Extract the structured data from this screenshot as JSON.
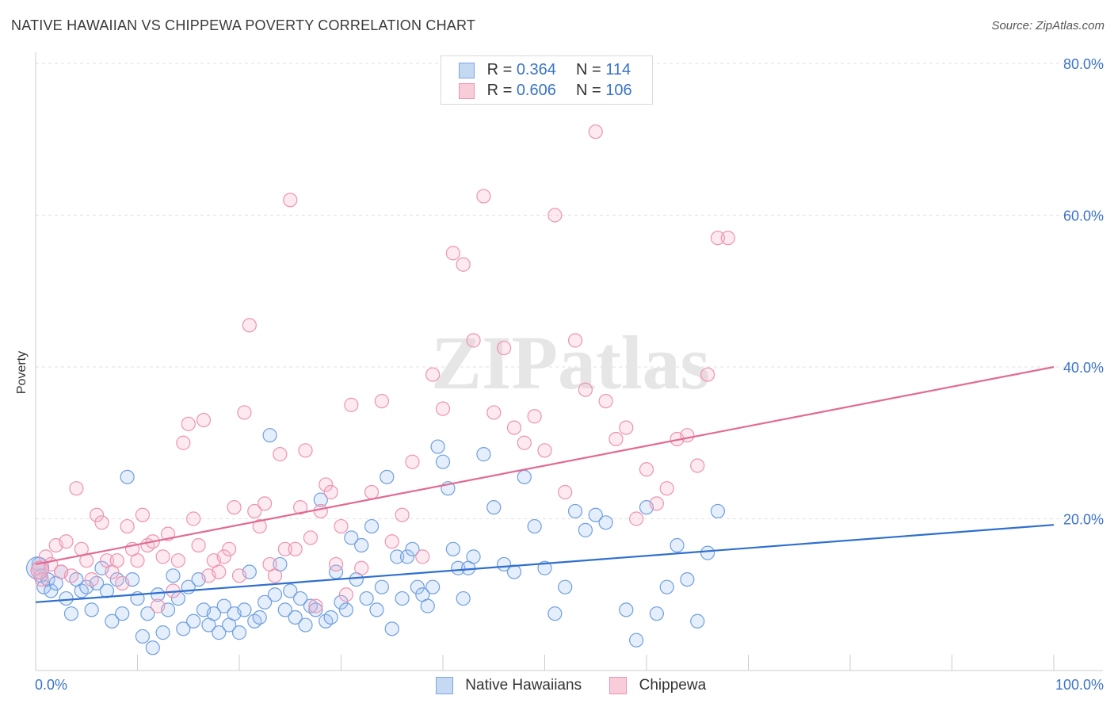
{
  "title": "NATIVE HAWAIIAN VS CHIPPEWA POVERTY CORRELATION CHART",
  "source": "Source: ZipAtlas.com",
  "watermark": "ZIPatlas",
  "legend": {
    "rows": [
      {
        "r_label": "R =",
        "r_value": "0.364",
        "n_label": "N =",
        "n_value": "114"
      },
      {
        "r_label": "R =",
        "r_value": "0.606",
        "n_label": "N =",
        "n_value": "106"
      }
    ]
  },
  "chart_data": {
    "type": "scatter",
    "title": "NATIVE HAWAIIAN VS CHIPPEWA POVERTY CORRELATION CHART",
    "xlabel": "",
    "ylabel": "Poverty",
    "xlim": [
      0,
      100
    ],
    "ylim": [
      0,
      80
    ],
    "x_tick_labels": [
      "0.0%",
      "100.0%"
    ],
    "y_ticks": [
      20,
      40,
      60,
      80
    ],
    "y_tick_labels": [
      "20.0%",
      "40.0%",
      "60.0%",
      "80.0%"
    ],
    "grid": true,
    "legend_position": "top-center",
    "colors": {
      "native_hawaiians": "#6f9fe0",
      "chippewa": "#ee93b0",
      "native_line": "#2f6fce",
      "chippewa_line": "#e26a93",
      "axis_label": "#3a73c8"
    },
    "series": [
      {
        "name": "Native Hawaiians",
        "r": 0.364,
        "n": 114,
        "trend": [
          [
            0,
            9.0
          ],
          [
            100,
            19.2
          ]
        ],
        "points": [
          [
            0.3,
            14
          ],
          [
            0.5,
            12.5
          ],
          [
            0.8,
            11
          ],
          [
            1.2,
            12
          ],
          [
            1.5,
            10.5
          ],
          [
            2,
            11.5
          ],
          [
            2.5,
            13
          ],
          [
            3,
            9.5
          ],
          [
            3.5,
            7.5
          ],
          [
            4,
            12
          ],
          [
            4.5,
            10.5
          ],
          [
            5,
            11
          ],
          [
            5.5,
            8
          ],
          [
            6,
            11.5
          ],
          [
            6.5,
            13.5
          ],
          [
            7,
            10.5
          ],
          [
            7.5,
            6.5
          ],
          [
            8,
            12
          ],
          [
            8.5,
            7.5
          ],
          [
            9,
            25.5
          ],
          [
            9.5,
            12
          ],
          [
            10,
            9.5
          ],
          [
            10.5,
            4.5
          ],
          [
            11,
            7.5
          ],
          [
            11.5,
            3
          ],
          [
            12,
            10
          ],
          [
            12.5,
            5
          ],
          [
            13,
            8
          ],
          [
            13.5,
            12.5
          ],
          [
            14,
            9.5
          ],
          [
            14.5,
            5.5
          ],
          [
            15,
            11
          ],
          [
            15.5,
            6.5
          ],
          [
            16,
            12
          ],
          [
            16.5,
            8
          ],
          [
            17,
            6
          ],
          [
            17.5,
            7.5
          ],
          [
            18,
            5
          ],
          [
            18.5,
            8.5
          ],
          [
            19,
            6
          ],
          [
            19.5,
            7.5
          ],
          [
            20,
            5
          ],
          [
            20.5,
            8
          ],
          [
            21,
            13
          ],
          [
            21.5,
            6.5
          ],
          [
            22,
            7
          ],
          [
            22.5,
            9
          ],
          [
            23,
            31
          ],
          [
            23.5,
            10
          ],
          [
            24,
            14
          ],
          [
            24.5,
            8
          ],
          [
            25,
            10.5
          ],
          [
            25.5,
            7
          ],
          [
            26,
            9.5
          ],
          [
            26.5,
            6
          ],
          [
            27,
            8.5
          ],
          [
            27.5,
            8
          ],
          [
            28,
            22.5
          ],
          [
            28.5,
            6.5
          ],
          [
            29,
            7
          ],
          [
            29.5,
            13
          ],
          [
            30,
            9
          ],
          [
            30.5,
            8
          ],
          [
            31,
            17.5
          ],
          [
            31.5,
            12
          ],
          [
            32,
            16.5
          ],
          [
            32.5,
            9.5
          ],
          [
            33,
            19
          ],
          [
            33.5,
            8
          ],
          [
            34,
            11
          ],
          [
            34.5,
            25.5
          ],
          [
            35,
            5.5
          ],
          [
            35.5,
            15
          ],
          [
            36,
            9.5
          ],
          [
            36.5,
            15
          ],
          [
            37,
            16
          ],
          [
            37.5,
            11
          ],
          [
            38,
            10
          ],
          [
            38.5,
            8.5
          ],
          [
            39,
            11
          ],
          [
            39.5,
            29.5
          ],
          [
            40,
            27.5
          ],
          [
            40.5,
            24
          ],
          [
            41,
            16
          ],
          [
            41.5,
            13.5
          ],
          [
            42,
            9.5
          ],
          [
            42.5,
            13.5
          ],
          [
            43,
            15
          ],
          [
            44,
            28.5
          ],
          [
            45,
            21.5
          ],
          [
            46,
            14
          ],
          [
            47,
            13
          ],
          [
            48,
            25.5
          ],
          [
            49,
            19
          ],
          [
            50,
            13.5
          ],
          [
            51,
            7.5
          ],
          [
            52,
            11
          ],
          [
            53,
            21
          ],
          [
            54,
            18.5
          ],
          [
            55,
            20.5
          ],
          [
            56,
            19.5
          ],
          [
            58,
            8
          ],
          [
            59,
            4
          ],
          [
            60,
            21.5
          ],
          [
            61,
            7.5
          ],
          [
            62,
            11
          ],
          [
            63,
            16.5
          ],
          [
            64,
            12
          ],
          [
            65,
            6.5
          ],
          [
            66,
            15.5
          ],
          [
            67,
            21
          ]
        ]
      },
      {
        "name": "Chippewa",
        "r": 0.606,
        "n": 106,
        "trend": [
          [
            0,
            14.0
          ],
          [
            100,
            40.0
          ]
        ],
        "points": [
          [
            0.3,
            13.5
          ],
          [
            0.6,
            12
          ],
          [
            1,
            15
          ],
          [
            1.5,
            14
          ],
          [
            2,
            16.5
          ],
          [
            2.5,
            13
          ],
          [
            3,
            17
          ],
          [
            3.5,
            12.5
          ],
          [
            4,
            24
          ],
          [
            4.5,
            16
          ],
          [
            5,
            14.5
          ],
          [
            5.5,
            12
          ],
          [
            6,
            20.5
          ],
          [
            6.5,
            19.5
          ],
          [
            7,
            14.5
          ],
          [
            7.5,
            13
          ],
          [
            8,
            14.5
          ],
          [
            8.5,
            11.5
          ],
          [
            9,
            19
          ],
          [
            9.5,
            16
          ],
          [
            10,
            14.5
          ],
          [
            10.5,
            20.5
          ],
          [
            11,
            16.5
          ],
          [
            11.5,
            17
          ],
          [
            12,
            8.5
          ],
          [
            12.5,
            15
          ],
          [
            13,
            18
          ],
          [
            13.5,
            10.5
          ],
          [
            14,
            14.5
          ],
          [
            14.5,
            30
          ],
          [
            15,
            32.5
          ],
          [
            15.5,
            20
          ],
          [
            16,
            16.5
          ],
          [
            16.5,
            33
          ],
          [
            17,
            12.5
          ],
          [
            17.5,
            14.5
          ],
          [
            18,
            13
          ],
          [
            18.5,
            15
          ],
          [
            19,
            16
          ],
          [
            19.5,
            21.5
          ],
          [
            20,
            12.5
          ],
          [
            20.5,
            34
          ],
          [
            21,
            45.5
          ],
          [
            21.5,
            21
          ],
          [
            22,
            19
          ],
          [
            22.5,
            22
          ],
          [
            23,
            14
          ],
          [
            23.5,
            12.5
          ],
          [
            24,
            28.5
          ],
          [
            24.5,
            16
          ],
          [
            25,
            62
          ],
          [
            25.5,
            16
          ],
          [
            26,
            21.5
          ],
          [
            26.5,
            29
          ],
          [
            27,
            17.5
          ],
          [
            27.5,
            8.5
          ],
          [
            28,
            21
          ],
          [
            28.5,
            24.5
          ],
          [
            29,
            23.5
          ],
          [
            29.5,
            14
          ],
          [
            30,
            19
          ],
          [
            30.5,
            10
          ],
          [
            31,
            35
          ],
          [
            32,
            13.5
          ],
          [
            33,
            23.5
          ],
          [
            34,
            35.5
          ],
          [
            35,
            17
          ],
          [
            36,
            20.5
          ],
          [
            37,
            27.5
          ],
          [
            38,
            15
          ],
          [
            39,
            39
          ],
          [
            40,
            34.5
          ],
          [
            41,
            55
          ],
          [
            42,
            53.5
          ],
          [
            43,
            43.5
          ],
          [
            44,
            62.5
          ],
          [
            45,
            34
          ],
          [
            46,
            42.5
          ],
          [
            47,
            32
          ],
          [
            48,
            30
          ],
          [
            49,
            33.5
          ],
          [
            50,
            29
          ],
          [
            51,
            60
          ],
          [
            52,
            23.5
          ],
          [
            53,
            43.5
          ],
          [
            54,
            37
          ],
          [
            55,
            71
          ],
          [
            56,
            35.5
          ],
          [
            57,
            30.5
          ],
          [
            58,
            32
          ],
          [
            59,
            20
          ],
          [
            60,
            26.5
          ],
          [
            61,
            22
          ],
          [
            62,
            24
          ],
          [
            63,
            30.5
          ],
          [
            64,
            31
          ],
          [
            65,
            27
          ],
          [
            66,
            39
          ],
          [
            67,
            57
          ],
          [
            68,
            57
          ]
        ]
      }
    ]
  },
  "bottom_legend": {
    "items": [
      "Native Hawaiians",
      "Chippewa"
    ]
  }
}
